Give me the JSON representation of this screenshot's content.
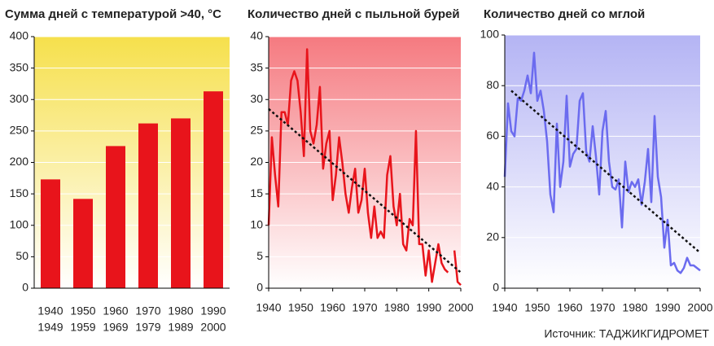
{
  "chart_data": [
    {
      "type": "bar",
      "title": "Сумма дней с температурой >40, °C",
      "categories": [
        [
          "1940",
          "1949"
        ],
        [
          "1950",
          "1959"
        ],
        [
          "1960",
          "1969"
        ],
        [
          "1970",
          "1979"
        ],
        [
          "1980",
          "1989"
        ],
        [
          "1990",
          "2000"
        ]
      ],
      "values": [
        173,
        142,
        226,
        262,
        270,
        313
      ],
      "color": "#e8141b",
      "background": "#f6e04c",
      "ylim": [
        0,
        400
      ],
      "yticks": [
        0,
        50,
        100,
        150,
        200,
        250,
        300,
        350,
        400
      ],
      "grid": true
    },
    {
      "type": "line",
      "title": "Количество дней с пыльной бурей",
      "x": [
        1940,
        1941,
        1942,
        1943,
        1944,
        1945,
        1946,
        1947,
        1948,
        1949,
        1950,
        1951,
        1952,
        1953,
        1954,
        1955,
        1956,
        1957,
        1958,
        1959,
        1960,
        1961,
        1962,
        1963,
        1964,
        1965,
        1966,
        1967,
        1968,
        1969,
        1970,
        1971,
        1972,
        1973,
        1974,
        1975,
        1976,
        1977,
        1978,
        1979,
        1980,
        1981,
        1982,
        1983,
        1984,
        1985,
        1986,
        1987,
        1988,
        1989,
        1990,
        1991,
        1992,
        1993,
        1994,
        1995,
        1996,
        1997,
        1998,
        1999,
        2000
      ],
      "values": [
        10,
        24,
        18,
        13,
        28,
        28,
        26,
        33,
        34.5,
        33,
        28,
        21,
        38,
        25,
        23,
        26,
        32,
        19,
        23,
        25,
        14,
        18,
        24,
        20,
        15,
        12,
        16,
        19,
        12,
        14,
        19,
        12,
        8,
        13,
        8,
        9,
        8,
        18,
        21,
        13,
        10,
        15,
        7,
        6,
        11,
        10,
        25,
        7,
        7,
        2,
        6,
        1,
        4,
        7,
        4,
        3,
        2.5,
        null,
        6,
        1,
        0.5
      ],
      "color": "#e8141b",
      "background": "#f57a80",
      "trend": {
        "x": [
          1940,
          2000
        ],
        "values": [
          28.5,
          2.5
        ]
      },
      "xlim": [
        1940,
        2000
      ],
      "xticks": [
        1940,
        1950,
        1960,
        1970,
        1980,
        1990,
        2000
      ],
      "ylim": [
        0,
        40
      ],
      "yticks": [
        0,
        5,
        10,
        15,
        20,
        25,
        30,
        35,
        40
      ],
      "grid": true
    },
    {
      "type": "line",
      "title": "Количество дней со мглой",
      "x": [
        1940,
        1941,
        1942,
        1943,
        1944,
        1945,
        1946,
        1947,
        1948,
        1949,
        1950,
        1951,
        1952,
        1953,
        1954,
        1955,
        1956,
        1957,
        1958,
        1959,
        1960,
        1961,
        1962,
        1963,
        1964,
        1965,
        1966,
        1967,
        1968,
        1969,
        1970,
        1971,
        1972,
        1973,
        1974,
        1975,
        1976,
        1977,
        1978,
        1979,
        1980,
        1981,
        1982,
        1983,
        1984,
        1985,
        1986,
        1987,
        1988,
        1989,
        1990,
        1991,
        1992,
        1993,
        1994,
        1995,
        1996,
        1997,
        1998,
        1999,
        2000
      ],
      "values": [
        44,
        73,
        62,
        60,
        75,
        74,
        78,
        84,
        77,
        93,
        74,
        78,
        70,
        58,
        37,
        30,
        65,
        40,
        50,
        76,
        48,
        53,
        55,
        74,
        77,
        54,
        50,
        64,
        52,
        37,
        62,
        70,
        50,
        40,
        39,
        43,
        24,
        50,
        38,
        42,
        40,
        43,
        33,
        42,
        55,
        34,
        68,
        44,
        36,
        16,
        27,
        9,
        10,
        7,
        6,
        8,
        12,
        9,
        9,
        8,
        7
      ],
      "color": "#6b6bef",
      "background": "#b4b4f4",
      "trend": {
        "x": [
          1942,
          2000
        ],
        "values": [
          78,
          14
        ]
      },
      "xlim": [
        1940,
        2000
      ],
      "xticks": [
        1940,
        1950,
        1960,
        1970,
        1980,
        1990,
        2000
      ],
      "ylim": [
        0,
        100
      ],
      "yticks": [
        0,
        20,
        40,
        60,
        80,
        100
      ],
      "grid": true
    }
  ],
  "source": "Источник: ТАДЖИКГИДРОМЕТ"
}
